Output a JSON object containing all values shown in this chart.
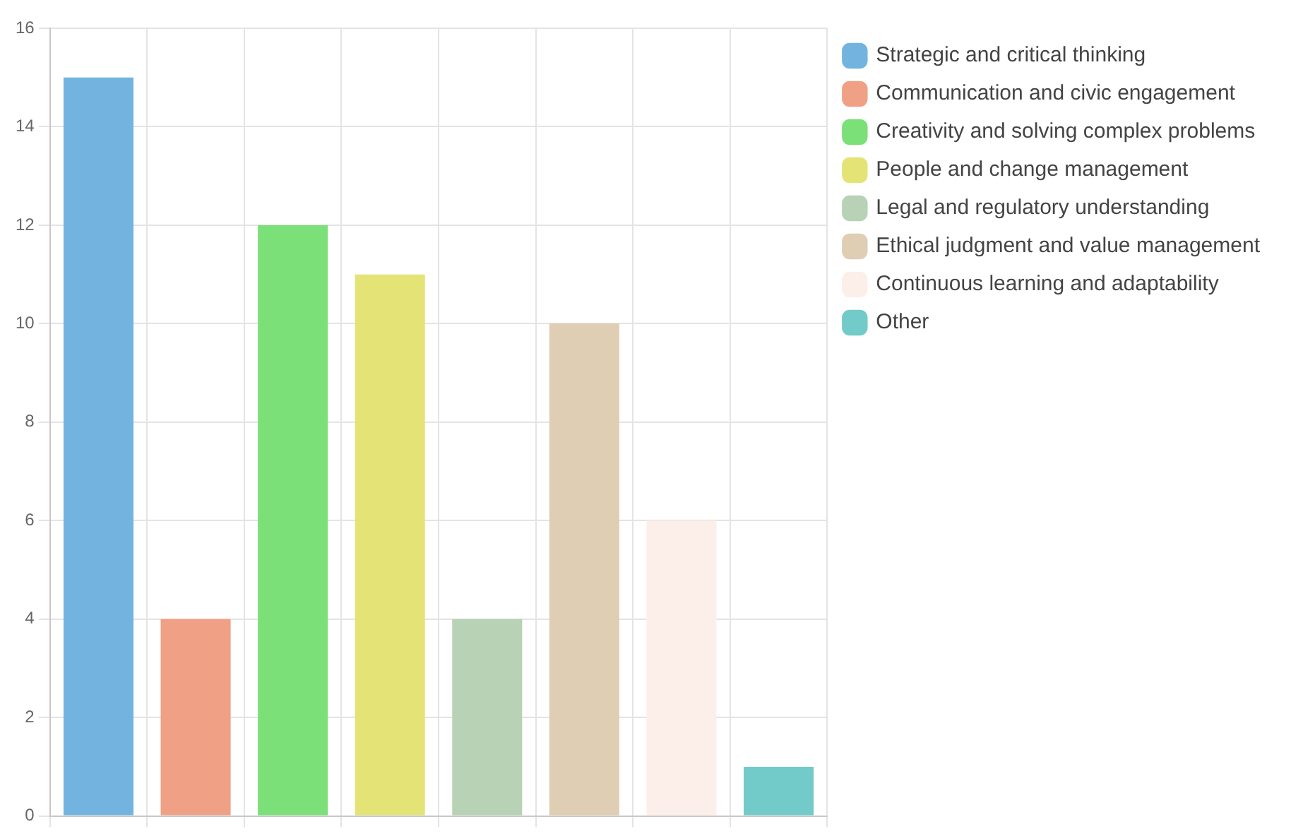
{
  "chart_data": {
    "type": "bar",
    "categories": [
      null,
      null,
      null,
      null,
      null,
      null,
      null,
      null
    ],
    "series": [
      {
        "name": "Strategic and critical thinking",
        "color": "#72b4df",
        "values": [
          15,
          null,
          null,
          null,
          null,
          null,
          null,
          null
        ]
      },
      {
        "name": "Communication and civic engagement",
        "color": "#f0a085",
        "values": [
          null,
          4,
          null,
          null,
          null,
          null,
          null,
          null
        ]
      },
      {
        "name": "Creativity and solving complex problems",
        "color": "#7be077",
        "values": [
          null,
          null,
          12,
          null,
          null,
          null,
          null,
          null
        ]
      },
      {
        "name": "People and change management",
        "color": "#e3e475",
        "values": [
          null,
          null,
          null,
          11,
          null,
          null,
          null,
          null
        ]
      },
      {
        "name": "Legal and regulatory understanding",
        "color": "#b7d2b4",
        "values": [
          null,
          null,
          null,
          null,
          4,
          null,
          null,
          null
        ]
      },
      {
        "name": "Ethical judgment and value management",
        "color": "#dfcdb4",
        "values": [
          null,
          null,
          null,
          null,
          null,
          10,
          null,
          null
        ]
      },
      {
        "name": "Continuous learning and adaptability",
        "color": "#fcefe9",
        "values": [
          null,
          null,
          null,
          null,
          null,
          null,
          6,
          null
        ]
      },
      {
        "name": "Other",
        "color": "#72cbc8",
        "values": [
          null,
          null,
          null,
          null,
          null,
          null,
          null,
          1
        ]
      }
    ],
    "ylim": [
      0,
      16
    ],
    "yticks": [
      0,
      2,
      4,
      6,
      8,
      10,
      12,
      14,
      16
    ],
    "grid": true,
    "legend": "right",
    "tick_labels": "y"
  }
}
